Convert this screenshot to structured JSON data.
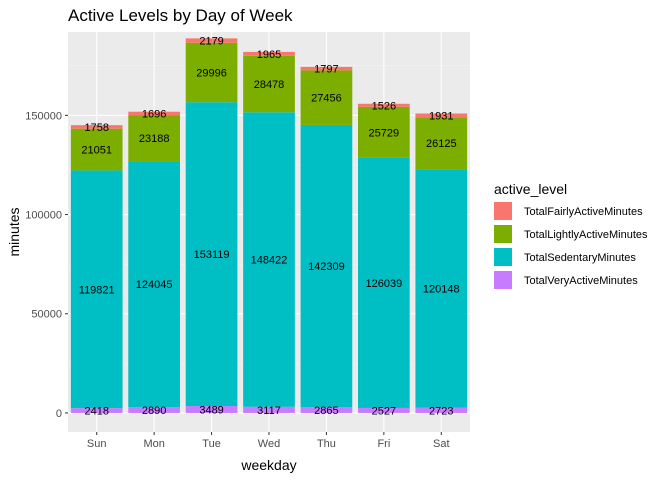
{
  "chart_data": {
    "type": "bar",
    "stacked": true,
    "title": "Active Levels by Day of Week",
    "xlabel": "weekday",
    "ylabel": "minutes",
    "categories": [
      "Sun",
      "Mon",
      "Tue",
      "Wed",
      "Thu",
      "Fri",
      "Sat"
    ],
    "ylim": [
      0,
      192000
    ],
    "yticks": [
      0,
      50000,
      100000,
      150000
    ],
    "grid": true,
    "legend": {
      "title": "active_level",
      "position": "right"
    },
    "series": [
      {
        "name": "TotalFairlyActiveMinutes",
        "color": "#F8766D",
        "values": [
          1758,
          1696,
          2179,
          1965,
          1797,
          1526,
          1931
        ]
      },
      {
        "name": "TotalLightlyActiveMinutes",
        "color": "#7CAE00",
        "values": [
          21051,
          23188,
          29996,
          28478,
          27456,
          25729,
          26125
        ]
      },
      {
        "name": "TotalSedentaryMinutes",
        "color": "#00BFC4",
        "values": [
          119821,
          124045,
          153119,
          148422,
          142309,
          126039,
          120148
        ]
      },
      {
        "name": "TotalVeryActiveMinutes",
        "color": "#C77CFF",
        "values": [
          2418,
          2890,
          3489,
          3117,
          2865,
          2527,
          2723
        ]
      }
    ]
  }
}
